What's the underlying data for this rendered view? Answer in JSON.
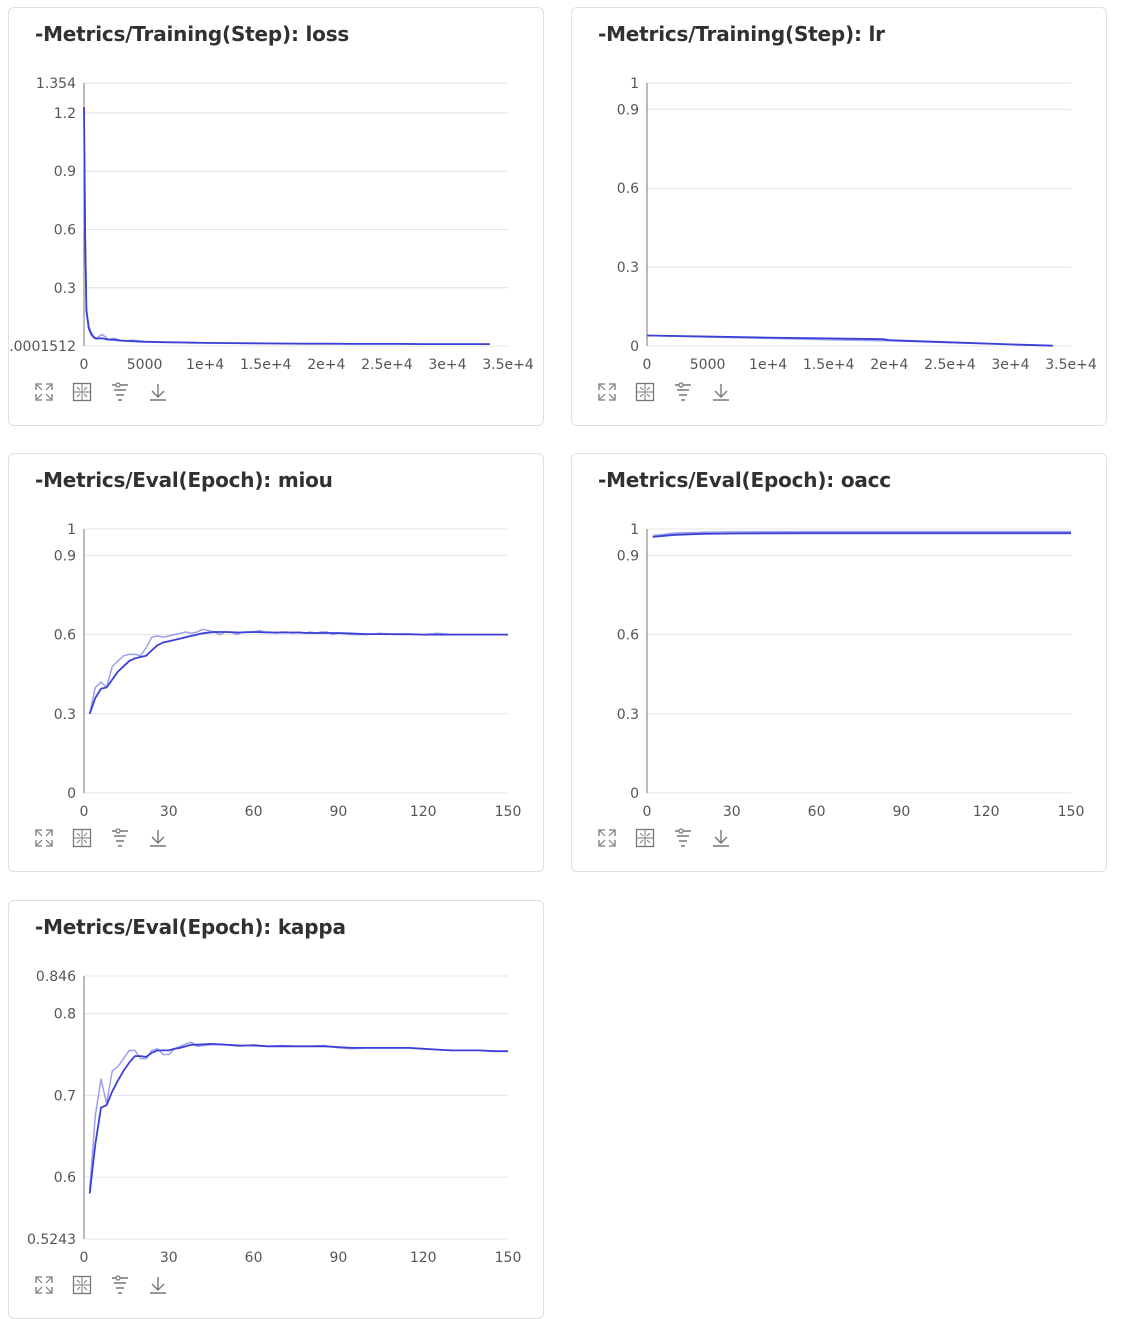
{
  "charts": [
    {
      "id": "loss",
      "title": "-Metrics/Training(Step): loss",
      "toolbar": [
        "expand-icon",
        "fit-screen-icon",
        "filter-icon",
        "download-icon"
      ],
      "chart_data": {
        "type": "line",
        "title": "-Metrics/Training(Step): loss",
        "xlim": [
          0,
          35000
        ],
        "ylim": [
          0.0001512,
          1.354
        ],
        "x_ticks": [
          0,
          5000,
          10000,
          15000,
          20000,
          25000,
          30000,
          35000
        ],
        "x_tick_labels": [
          "0",
          "5000",
          "1e+4",
          "1.5e+4",
          "2e+4",
          "2.5e+4",
          "3e+4",
          "3.5e+4"
        ],
        "y_ticks": [
          0.0001512,
          0.3,
          0.6,
          0.9,
          1.2,
          1.354
        ],
        "y_tick_labels": [
          ".0001512",
          "0.3",
          "0.6",
          "0.9",
          "1.2",
          "1.354"
        ],
        "grid": true,
        "series": [
          {
            "role": "raw",
            "color": "#8a8fe6",
            "x": [
              0,
              100,
              200,
              400,
              600,
              800,
              1000,
              1500,
              2000,
              2500,
              3000,
              3500,
              4000,
              5000,
              6000,
              7000,
              8000,
              9000,
              10000,
              12000,
              14000,
              16000,
              18000,
              20000,
              22000,
              24000,
              26000,
              28000,
              30000,
              32000,
              33500
            ],
            "y": [
              1.23,
              0.6,
              0.2,
              0.1,
              0.07,
              0.05,
              0.04,
              0.06,
              0.035,
              0.04,
              0.03,
              0.028,
              0.03,
              0.024,
              0.022,
              0.02,
              0.02,
              0.018,
              0.016,
              0.015,
              0.014,
              0.013,
              0.012,
              0.012,
              0.011,
              0.011,
              0.011,
              0.01,
              0.01,
              0.01,
              0.01
            ]
          },
          {
            "role": "smoothed",
            "color": "#3b3fd6",
            "x": [
              0,
              100,
              200,
              400,
              600,
              800,
              1000,
              1500,
              2000,
              2500,
              3000,
              3500,
              4000,
              5000,
              6000,
              7000,
              8000,
              9000,
              10000,
              12000,
              14000,
              16000,
              18000,
              20000,
              22000,
              24000,
              26000,
              28000,
              30000,
              32000,
              33500
            ],
            "y": [
              1.23,
              0.55,
              0.18,
              0.09,
              0.06,
              0.045,
              0.038,
              0.04,
              0.033,
              0.032,
              0.028,
              0.026,
              0.025,
              0.022,
              0.02,
              0.019,
              0.018,
              0.017,
              0.016,
              0.015,
              0.014,
              0.013,
              0.012,
              0.012,
              0.011,
              0.011,
              0.011,
              0.01,
              0.01,
              0.01,
              0.01
            ]
          }
        ]
      }
    },
    {
      "id": "lr",
      "title": "-Metrics/Training(Step): lr",
      "toolbar": [
        "expand-icon",
        "fit-screen-icon",
        "filter-icon",
        "download-icon"
      ],
      "chart_data": {
        "type": "line",
        "title": "-Metrics/Training(Step): lr",
        "xlim": [
          0,
          35000
        ],
        "ylim": [
          0,
          1
        ],
        "x_ticks": [
          0,
          5000,
          10000,
          15000,
          20000,
          25000,
          30000,
          35000
        ],
        "x_tick_labels": [
          "0",
          "5000",
          "1e+4",
          "1.5e+4",
          "2e+4",
          "2.5e+4",
          "3e+4",
          "3.5e+4"
        ],
        "y_ticks": [
          0,
          0.3,
          0.6,
          0.9,
          1
        ],
        "y_tick_labels": [
          "0",
          "0.3",
          "0.6",
          "0.9",
          "1"
        ],
        "grid": true,
        "series": [
          {
            "role": "raw",
            "color": "#8a8fe6",
            "x": [
              0,
              5000,
              10000,
              15000,
              19500,
              20000,
              25000,
              30000,
              33500
            ],
            "y": [
              0.04,
              0.034,
              0.029,
              0.024,
              0.02,
              0.02,
              0.013,
              0.006,
              0.001
            ]
          },
          {
            "role": "smoothed",
            "color": "#3b3fd6",
            "x": [
              0,
              5000,
              10000,
              15000,
              19500,
              20000,
              25000,
              30000,
              33500
            ],
            "y": [
              0.04,
              0.036,
              0.032,
              0.029,
              0.026,
              0.022,
              0.014,
              0.006,
              0.001
            ]
          }
        ]
      }
    },
    {
      "id": "miou",
      "title": "-Metrics/Eval(Epoch): miou",
      "toolbar": [
        "expand-icon",
        "fit-screen-icon",
        "filter-icon",
        "download-icon"
      ],
      "chart_data": {
        "type": "line",
        "title": "-Metrics/Eval(Epoch): miou",
        "xlim": [
          0,
          150
        ],
        "ylim": [
          0,
          1
        ],
        "x_ticks": [
          0,
          30,
          60,
          90,
          120,
          150
        ],
        "x_tick_labels": [
          "0",
          "30",
          "60",
          "90",
          "120",
          "150"
        ],
        "y_ticks": [
          0,
          0.3,
          0.6,
          0.9,
          1
        ],
        "y_tick_labels": [
          "0",
          "0.3",
          "0.6",
          "0.9",
          "1"
        ],
        "grid": true,
        "series": [
          {
            "role": "raw",
            "color": "#8a8fe6",
            "x": [
              2,
              4,
              6,
              8,
              10,
              12,
              14,
              16,
              18,
              20,
              22,
              24,
              26,
              28,
              30,
              32,
              34,
              36,
              38,
              40,
              42,
              44,
              46,
              48,
              50,
              52,
              54,
              56,
              58,
              60,
              62,
              64,
              66,
              68,
              70,
              72,
              74,
              76,
              78,
              80,
              82,
              84,
              86,
              88,
              90,
              95,
              100,
              105,
              110,
              115,
              120,
              125,
              130,
              135,
              140,
              145,
              150
            ],
            "y": [
              0.3,
              0.4,
              0.42,
              0.4,
              0.48,
              0.5,
              0.52,
              0.525,
              0.525,
              0.52,
              0.55,
              0.59,
              0.595,
              0.59,
              0.595,
              0.6,
              0.605,
              0.61,
              0.605,
              0.61,
              0.62,
              0.615,
              0.61,
              0.6,
              0.61,
              0.61,
              0.6,
              0.61,
              0.61,
              0.61,
              0.615,
              0.61,
              0.61,
              0.605,
              0.61,
              0.61,
              0.605,
              0.61,
              0.605,
              0.61,
              0.605,
              0.61,
              0.61,
              0.6,
              0.605,
              0.6,
              0.6,
              0.605,
              0.6,
              0.6,
              0.6,
              0.605,
              0.6,
              0.6,
              0.6,
              0.6,
              0.6
            ]
          },
          {
            "role": "smoothed",
            "color": "#3b3fd6",
            "x": [
              2,
              4,
              6,
              8,
              10,
              12,
              14,
              16,
              18,
              20,
              22,
              24,
              26,
              28,
              30,
              34,
              38,
              42,
              46,
              50,
              55,
              60,
              65,
              70,
              75,
              80,
              85,
              90,
              95,
              100,
              105,
              110,
              115,
              120,
              125,
              130,
              135,
              140,
              145,
              150
            ],
            "y": [
              0.3,
              0.36,
              0.395,
              0.4,
              0.43,
              0.46,
              0.48,
              0.5,
              0.51,
              0.515,
              0.52,
              0.54,
              0.56,
              0.57,
              0.575,
              0.585,
              0.595,
              0.605,
              0.61,
              0.61,
              0.608,
              0.61,
              0.608,
              0.608,
              0.608,
              0.606,
              0.606,
              0.606,
              0.604,
              0.602,
              0.602,
              0.602,
              0.602,
              0.6,
              0.6,
              0.6,
              0.6,
              0.6,
              0.6,
              0.6
            ]
          }
        ]
      }
    },
    {
      "id": "oacc",
      "title": "-Metrics/Eval(Epoch): oacc",
      "toolbar": [
        "expand-icon",
        "fit-screen-icon",
        "filter-icon",
        "download-icon"
      ],
      "chart_data": {
        "type": "line",
        "title": "-Metrics/Eval(Epoch): oacc",
        "xlim": [
          0,
          150
        ],
        "ylim": [
          0,
          1
        ],
        "x_ticks": [
          0,
          30,
          60,
          90,
          120,
          150
        ],
        "x_tick_labels": [
          "0",
          "30",
          "60",
          "90",
          "120",
          "150"
        ],
        "y_ticks": [
          0,
          0.3,
          0.6,
          0.9,
          1
        ],
        "y_tick_labels": [
          "0",
          "0.3",
          "0.6",
          "0.9",
          "1"
        ],
        "grid": true,
        "series": [
          {
            "role": "raw",
            "color": "#8a8fe6",
            "x": [
              2,
              10,
              20,
              30,
              60,
              90,
              120,
              150
            ],
            "y": [
              0.975,
              0.985,
              0.988,
              0.989,
              0.99,
              0.99,
              0.99,
              0.99
            ]
          },
          {
            "role": "smoothed",
            "color": "#3b3fd6",
            "x": [
              2,
              10,
              20,
              30,
              60,
              90,
              120,
              150
            ],
            "y": [
              0.97,
              0.978,
              0.982,
              0.983,
              0.984,
              0.984,
              0.984,
              0.984
            ]
          }
        ]
      }
    },
    {
      "id": "kappa",
      "title": "-Metrics/Eval(Epoch): kappa",
      "toolbar": [
        "expand-icon",
        "fit-screen-icon",
        "filter-icon",
        "download-icon"
      ],
      "chart_data": {
        "type": "line",
        "title": "-Metrics/Eval(Epoch): kappa",
        "xlim": [
          0,
          150
        ],
        "ylim": [
          0.5243,
          0.846
        ],
        "x_ticks": [
          0,
          30,
          60,
          90,
          120,
          150
        ],
        "x_tick_labels": [
          "0",
          "30",
          "60",
          "90",
          "120",
          "150"
        ],
        "y_ticks": [
          0.5243,
          0.6,
          0.7,
          0.8,
          0.846
        ],
        "y_tick_labels": [
          "0.5243",
          "0.6",
          "0.7",
          "0.8",
          "0.846"
        ],
        "grid": true,
        "series": [
          {
            "role": "raw",
            "color": "#8a8fe6",
            "x": [
              2,
              4,
              6,
              8,
              10,
              12,
              14,
              16,
              18,
              20,
              22,
              24,
              26,
              28,
              30,
              32,
              34,
              36,
              38,
              40,
              45,
              50,
              55,
              60,
              65,
              70,
              75,
              80,
              85,
              90,
              95,
              100,
              105,
              110,
              115,
              120,
              125,
              130,
              135,
              140,
              145,
              150
            ],
            "y": [
              0.585,
              0.675,
              0.72,
              0.69,
              0.73,
              0.735,
              0.745,
              0.755,
              0.755,
              0.745,
              0.745,
              0.755,
              0.757,
              0.75,
              0.75,
              0.757,
              0.76,
              0.763,
              0.765,
              0.76,
              0.762,
              0.762,
              0.76,
              0.762,
              0.76,
              0.761,
              0.76,
              0.76,
              0.761,
              0.758,
              0.757,
              0.758,
              0.758,
              0.758,
              0.758,
              0.757,
              0.756,
              0.755,
              0.755,
              0.755,
              0.754,
              0.754
            ]
          },
          {
            "role": "smoothed",
            "color": "#3b3fd6",
            "x": [
              2,
              4,
              6,
              8,
              10,
              12,
              14,
              16,
              18,
              20,
              22,
              24,
              26,
              28,
              30,
              32,
              34,
              36,
              38,
              40,
              45,
              50,
              55,
              60,
              65,
              70,
              75,
              80,
              85,
              90,
              95,
              100,
              105,
              110,
              115,
              120,
              125,
              130,
              135,
              140,
              145,
              150
            ],
            "y": [
              0.58,
              0.64,
              0.685,
              0.688,
              0.705,
              0.718,
              0.73,
              0.74,
              0.748,
              0.748,
              0.747,
              0.752,
              0.755,
              0.755,
              0.755,
              0.757,
              0.758,
              0.76,
              0.762,
              0.762,
              0.763,
              0.762,
              0.761,
              0.761,
              0.76,
              0.76,
              0.76,
              0.76,
              0.76,
              0.759,
              0.758,
              0.758,
              0.758,
              0.758,
              0.758,
              0.757,
              0.756,
              0.755,
              0.755,
              0.755,
              0.754,
              0.754
            ]
          }
        ]
      }
    }
  ]
}
